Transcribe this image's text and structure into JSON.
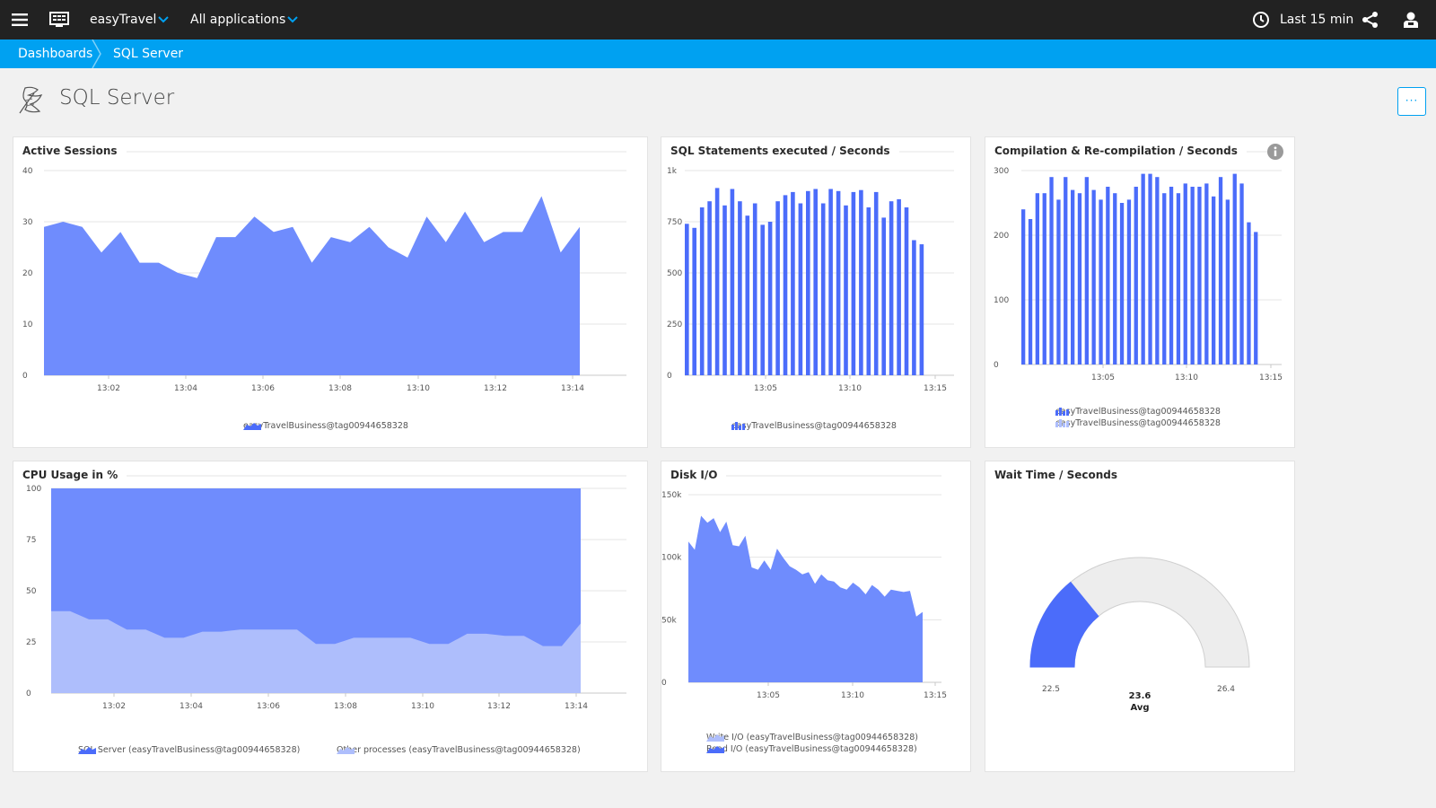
{
  "topbar": {
    "app_name": "easyTravel",
    "app_filter": "All applications",
    "timeframe": "Last 15 min",
    "icons": [
      "menu-icon",
      "monitor-icon",
      "chevron-down-icon",
      "clock-icon",
      "share-icon",
      "user-icon"
    ]
  },
  "breadcrumb": {
    "items": [
      "Dashboards",
      "SQL Server"
    ]
  },
  "page": {
    "title": "SQL Server",
    "more_label": "···"
  },
  "colors": {
    "primary": "#6f8cfd",
    "primary_dark": "#4b6cfa",
    "secondary": "#aebefc",
    "topbar": "#222222",
    "breadcrumb": "#00a1f1",
    "gauge_track": "#e6e6e6"
  },
  "tiles": {
    "active_sessions": {
      "title": "Active Sessions",
      "legend": [
        "easyTravelBusiness@tag00944658328"
      ]
    },
    "sql_statements": {
      "title": "SQL Statements executed / Seconds",
      "legend": [
        "easyTravelBusiness@tag00944658328"
      ]
    },
    "compilation": {
      "title": "Compilation & Re-compilation / Seconds",
      "legend": [
        "easyTravelBusiness@tag00944658328",
        "easyTravelBusiness@tag00944658328"
      ]
    },
    "cpu": {
      "title": "CPU Usage in %",
      "legend": [
        "SQL Server (easyTravelBusiness@tag00944658328)",
        "Other processes (easyTravelBusiness@tag00944658328)"
      ]
    },
    "disk_io": {
      "title": "Disk I/O",
      "legend": [
        "Write I/O (easyTravelBusiness@tag00944658328)",
        "Read I/O (easyTravelBusiness@tag00944658328)"
      ]
    },
    "wait_time": {
      "title": "Wait Time / Seconds",
      "min_label": "22.5",
      "max_label": "26.4",
      "value_label": "23.6",
      "avg_label": "Avg"
    }
  },
  "chart_data": [
    {
      "id": "active_sessions",
      "type": "area",
      "yticks": [
        "0",
        "10",
        "20",
        "30",
        "40"
      ],
      "ylim": [
        0,
        40
      ],
      "xticks": [
        "13:02",
        "13:04",
        "13:06",
        "13:08",
        "13:10",
        "13:12",
        "13:14"
      ],
      "series": [
        {
          "name": "easyTravelBusiness@tag00944658328",
          "values": [
            29,
            30,
            29,
            24,
            28,
            22,
            22,
            20,
            19,
            27,
            27,
            31,
            28,
            29,
            22,
            27,
            26,
            29,
            25,
            23,
            31,
            26,
            32,
            26,
            28,
            28,
            35,
            24,
            29
          ]
        }
      ]
    },
    {
      "id": "sql_statements",
      "type": "bar",
      "yticks": [
        "0",
        "250",
        "500",
        "750",
        "1k"
      ],
      "ylim": [
        0,
        1000
      ],
      "xticks": [
        "13:05",
        "13:10",
        "13:15"
      ],
      "series": [
        {
          "name": "easyTravelBusiness@tag00944658328",
          "values": [
            740,
            720,
            820,
            850,
            915,
            830,
            910,
            850,
            780,
            840,
            735,
            750,
            850,
            880,
            895,
            840,
            900,
            910,
            840,
            910,
            900,
            830,
            895,
            905,
            820,
            895,
            770,
            850,
            860,
            820,
            660,
            640
          ]
        }
      ]
    },
    {
      "id": "compilation",
      "type": "bar",
      "yticks": [
        "0",
        "100",
        "200",
        "300"
      ],
      "ylim": [
        0,
        300
      ],
      "xticks": [
        "13:05",
        "13:10",
        "13:15"
      ],
      "series": [
        {
          "name": "easyTravelBusiness@tag00944658328",
          "values": [
            240,
            225,
            265,
            265,
            290,
            255,
            290,
            270,
            265,
            290,
            270,
            255,
            275,
            265,
            250,
            255,
            275,
            295,
            295,
            290,
            265,
            275,
            265,
            280,
            275,
            275,
            280,
            260,
            290,
            255,
            295,
            280,
            220,
            205
          ]
        }
      ]
    },
    {
      "id": "cpu",
      "type": "area",
      "yticks": [
        "0",
        "25",
        "50",
        "75",
        "100"
      ],
      "ylim": [
        0,
        100
      ],
      "xticks": [
        "13:02",
        "13:04",
        "13:06",
        "13:08",
        "13:10",
        "13:12",
        "13:14"
      ],
      "series": [
        {
          "name": "SQL Server (easyTravelBusiness@tag00944658328)",
          "values": [
            100,
            100,
            100,
            100,
            100,
            100,
            100,
            100,
            100,
            100,
            100,
            100,
            100,
            100,
            100,
            100,
            100,
            100,
            100,
            100,
            100,
            100,
            100,
            100,
            100,
            100,
            100,
            100,
            100
          ]
        },
        {
          "name": "Other processes (easyTravelBusiness@tag00944658328)",
          "values": [
            40,
            40,
            36,
            36,
            31,
            31,
            27,
            27,
            30,
            30,
            31,
            31,
            31,
            31,
            24,
            24,
            27,
            27,
            27,
            27,
            24,
            24,
            29,
            29,
            28,
            28,
            23,
            23,
            34
          ]
        }
      ]
    },
    {
      "id": "disk_io",
      "type": "area",
      "yticks": [
        "0",
        "50k",
        "100k",
        "150k"
      ],
      "ylim": [
        0,
        160000
      ],
      "xticks": [
        "13:05",
        "13:10",
        "13:15"
      ],
      "series": [
        {
          "name": "Write I/O (easyTravelBusiness@tag00944658328)",
          "values": [
            0,
            0,
            0,
            0,
            0,
            0,
            0,
            0,
            0,
            0,
            0,
            0,
            0,
            0,
            0,
            0,
            0,
            0,
            0,
            0,
            0,
            0,
            0,
            0,
            0,
            0,
            0,
            0,
            0,
            0,
            0,
            0,
            0,
            0,
            0,
            0,
            0,
            0
          ]
        },
        {
          "name": "Read I/O (easyTravelBusiness@tag00944658328)",
          "values": [
            120000,
            113000,
            142000,
            136000,
            140000,
            128000,
            137000,
            117000,
            116000,
            125000,
            98000,
            96000,
            104000,
            96000,
            114000,
            106000,
            99000,
            96000,
            92000,
            94000,
            84000,
            92000,
            87000,
            86000,
            81000,
            79000,
            85000,
            81000,
            75000,
            83000,
            79000,
            73000,
            79000,
            78000,
            77000,
            78000,
            56000,
            60000
          ]
        }
      ]
    },
    {
      "id": "wait_time",
      "type": "gauge",
      "min": 22.5,
      "max": 26.4,
      "value": 23.6,
      "label": "Avg"
    }
  ]
}
